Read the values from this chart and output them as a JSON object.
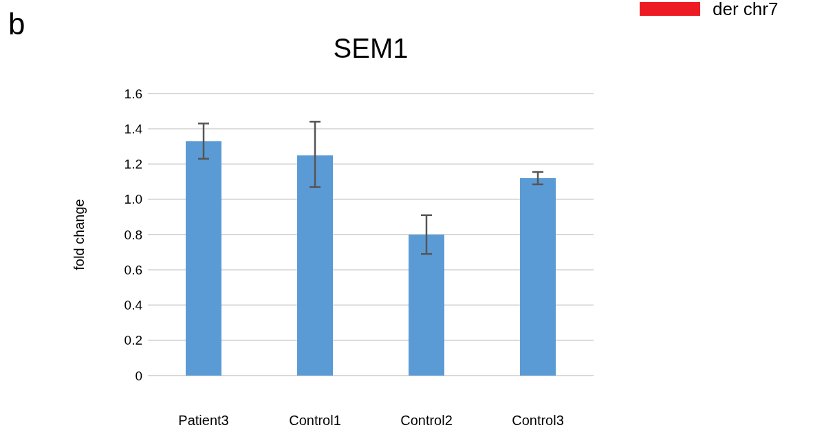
{
  "chart_data": {
    "type": "bar",
    "title": "SEM1",
    "ylabel": "fold change",
    "categories": [
      "Patient3",
      "Control1",
      "Control2",
      "Control3"
    ],
    "values": [
      1.33,
      1.25,
      0.8,
      1.12
    ],
    "errors": [
      0.1,
      [
        1.07,
        1.44
      ],
      0.11,
      0.035
    ],
    "color": "#5b9bd5",
    "ylim": [
      0,
      1.6
    ],
    "yticks": [
      0,
      0.2,
      0.4,
      0.6,
      0.8,
      {
        "value": 1,
        "label": "1.0"
      },
      1.2,
      1.4,
      1.6
    ],
    "grid": "y",
    "annotations": [
      "b",
      "der chr7"
    ]
  }
}
